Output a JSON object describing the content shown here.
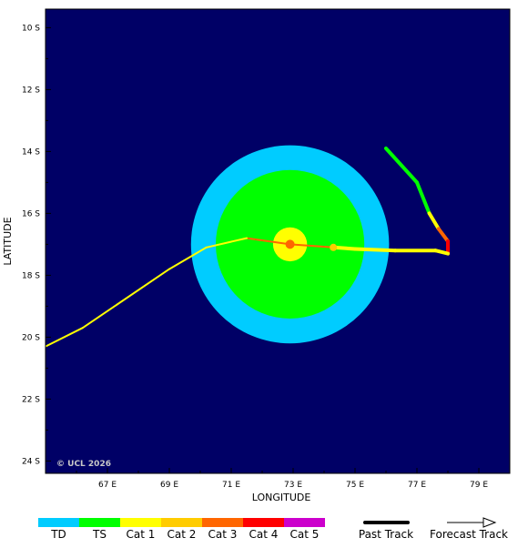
{
  "map": {
    "xlabel": "LONGITUDE",
    "ylabel": "LATITUDE",
    "lon_range": [
      65,
      80
    ],
    "lat_range": [
      -24.4,
      -9.4
    ],
    "lat_ticks": [
      {
        "value": -10,
        "label": "10 S"
      },
      {
        "value": -12,
        "label": "12 S"
      },
      {
        "value": -14,
        "label": "14 S"
      },
      {
        "value": -16,
        "label": "16 S"
      },
      {
        "value": -18,
        "label": "18 S"
      },
      {
        "value": -20,
        "label": "20 S"
      },
      {
        "value": -22,
        "label": "22 S"
      },
      {
        "value": -24,
        "label": "24 S"
      }
    ],
    "lon_ticks": [
      {
        "value": 67,
        "label": "67 E"
      },
      {
        "value": 69,
        "label": "69 E"
      },
      {
        "value": 71,
        "label": "71 E"
      },
      {
        "value": 73,
        "label": "73 E"
      },
      {
        "value": 75,
        "label": "75 E"
      },
      {
        "value": 77,
        "label": "77 E"
      },
      {
        "value": 79,
        "label": "79 E"
      }
    ],
    "copyright": "© UCL 2026",
    "background_color": "#000066"
  },
  "storm": {
    "center": {
      "lon": 72.9,
      "lat": -17.0
    },
    "wind_radii_deg": {
      "td": 3.2,
      "ts": 2.4,
      "cat1": 0.55
    },
    "past_track": [
      {
        "lon": 76.0,
        "lat": -13.9,
        "cat": "TS"
      },
      {
        "lon": 77.0,
        "lat": -15.0,
        "cat": "TS"
      },
      {
        "lon": 77.4,
        "lat": -16.0,
        "cat": "TS"
      },
      {
        "lon": 77.7,
        "lat": -16.5,
        "cat": "Cat 1"
      },
      {
        "lon": 78.0,
        "lat": -16.9,
        "cat": "Cat 3"
      },
      {
        "lon": 78.0,
        "lat": -17.3,
        "cat": "Cat 4"
      },
      {
        "lon": 77.6,
        "lat": -17.2,
        "cat": "Cat 1"
      },
      {
        "lon": 76.3,
        "lat": -17.2,
        "cat": "Cat 1"
      },
      {
        "lon": 75.0,
        "lat": -17.15,
        "cat": "Cat 1"
      },
      {
        "lon": 74.3,
        "lat": -17.1,
        "cat": "Cat 1"
      }
    ],
    "forecast_track": [
      {
        "lon": 74.3,
        "lat": -17.1,
        "cat": "Cat 1"
      },
      {
        "lon": 72.9,
        "lat": -17.0,
        "cat": "Cat 3"
      },
      {
        "lon": 71.5,
        "lat": -16.8,
        "cat": "Cat 3"
      },
      {
        "lon": 70.2,
        "lat": -17.1,
        "cat": "Cat 1"
      },
      {
        "lon": 69.0,
        "lat": -17.8,
        "cat": "Cat 1"
      },
      {
        "lon": 66.2,
        "lat": -19.7,
        "cat": "Cat 1"
      },
      {
        "lon": 65.0,
        "lat": -20.3,
        "cat": "Cat 1"
      }
    ]
  },
  "legend": {
    "categories": [
      {
        "label": "TD",
        "color": "#00ccff"
      },
      {
        "label": "TS",
        "color": "#00ff00"
      },
      {
        "label": "Cat 1",
        "color": "#ffff00"
      },
      {
        "label": "Cat 2",
        "color": "#ffcc00"
      },
      {
        "label": "Cat 3",
        "color": "#ff6600"
      },
      {
        "label": "Cat 4",
        "color": "#ff0000"
      },
      {
        "label": "Cat 5",
        "color": "#cc00cc"
      }
    ],
    "past_track_label": "Past Track",
    "forecast_track_label": "Forecast Track"
  }
}
